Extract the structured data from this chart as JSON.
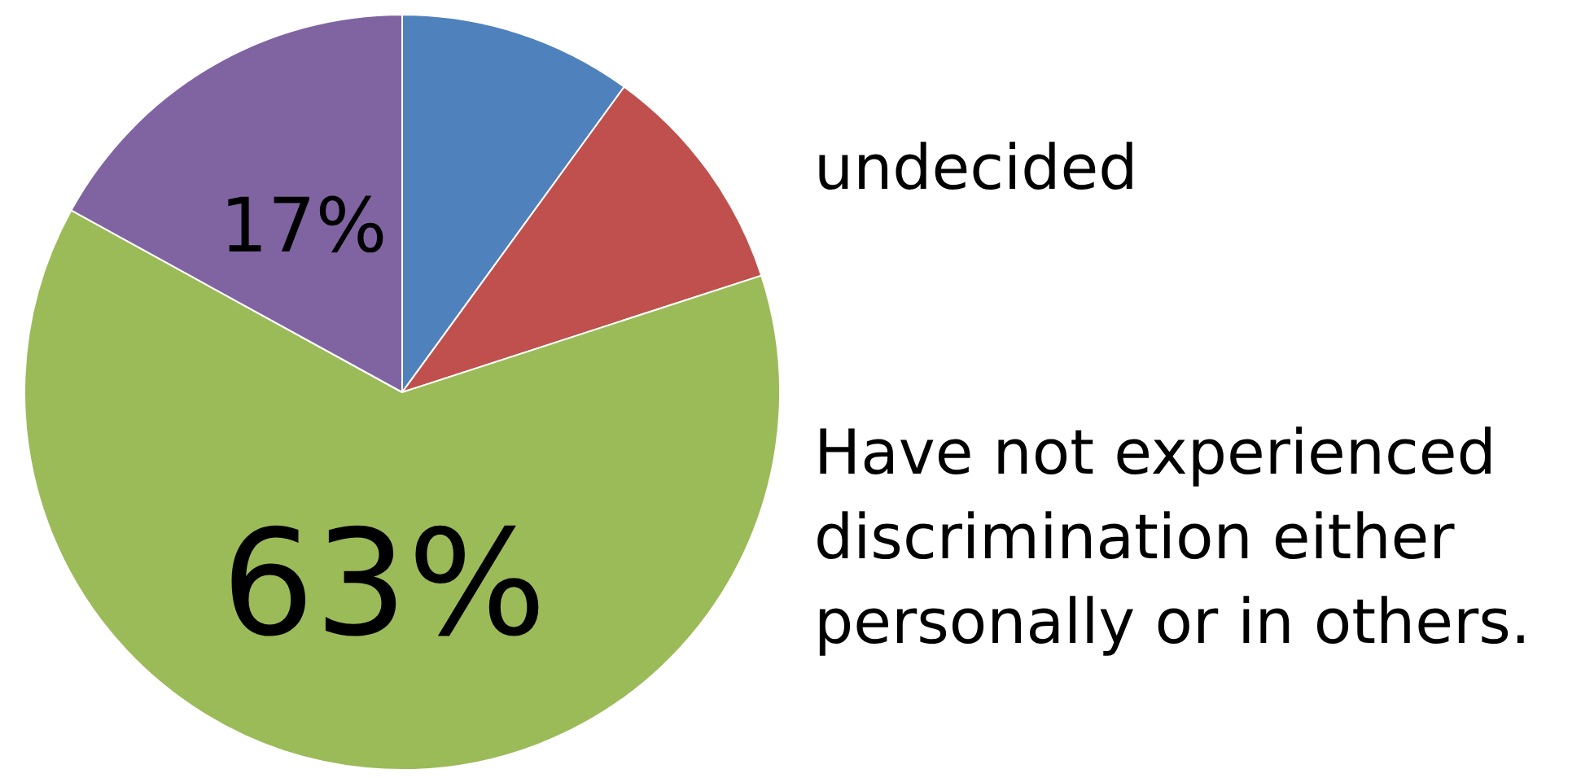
{
  "chart_data": {
    "type": "pie",
    "categories": [
      null,
      "undecided",
      "Have not experienced discrimination either personally or in others.",
      null
    ],
    "values": [
      10,
      10,
      63,
      17
    ],
    "colors": [
      "#4f81bd",
      "#c0504d",
      "#9bbb59",
      "#8064a2"
    ],
    "value_labels": [
      null,
      null,
      "63%",
      "17%"
    ],
    "legend": false
  }
}
